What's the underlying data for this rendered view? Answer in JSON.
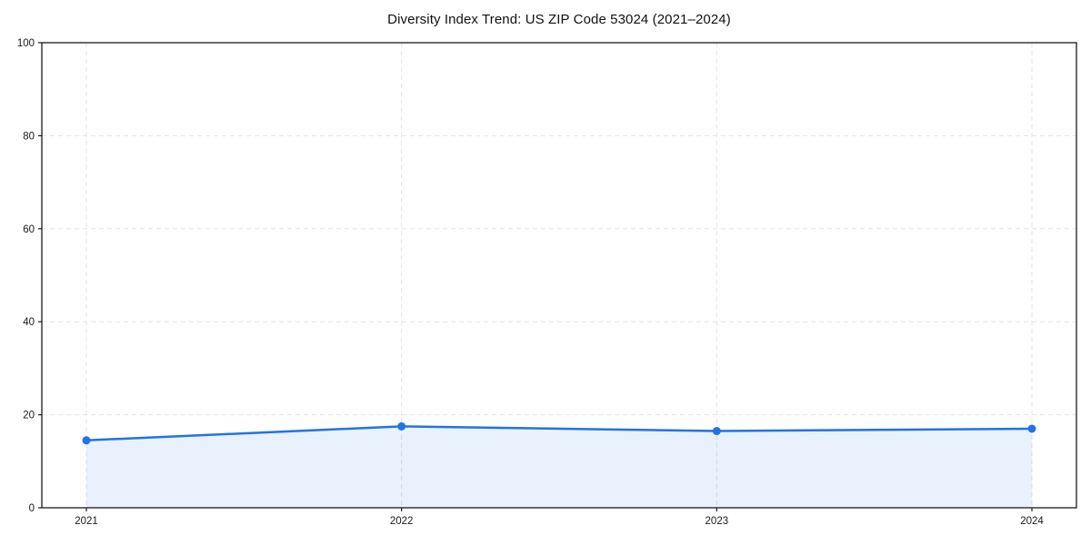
{
  "page": {
    "background": "#ffffff"
  },
  "chart_data": {
    "type": "line",
    "title": "Diversity Index Trend: US ZIP Code 53024 (2021–2024)",
    "categories": [
      "2021",
      "2022",
      "2023",
      "2024"
    ],
    "series": [
      {
        "name": "Diversity Index",
        "values": [
          14.5,
          17.5,
          16.5,
          17.0
        ]
      }
    ],
    "xlabel": "",
    "ylabel": "",
    "ylim": [
      0,
      100
    ],
    "yticks": [
      0,
      20,
      40,
      60,
      80,
      100
    ],
    "grid": true,
    "grid_style": "dashed",
    "legend": "none",
    "area_fill": true,
    "line_color": "#2273e6",
    "marker_color": "#2273e6",
    "fill_color": "rgba(34,115,230,0.10)",
    "grid_color": "#e3e3e3",
    "axis_color": "#1a1a1a",
    "tick_label_color": "#1a1a1a",
    "title_color": "#111111"
  }
}
